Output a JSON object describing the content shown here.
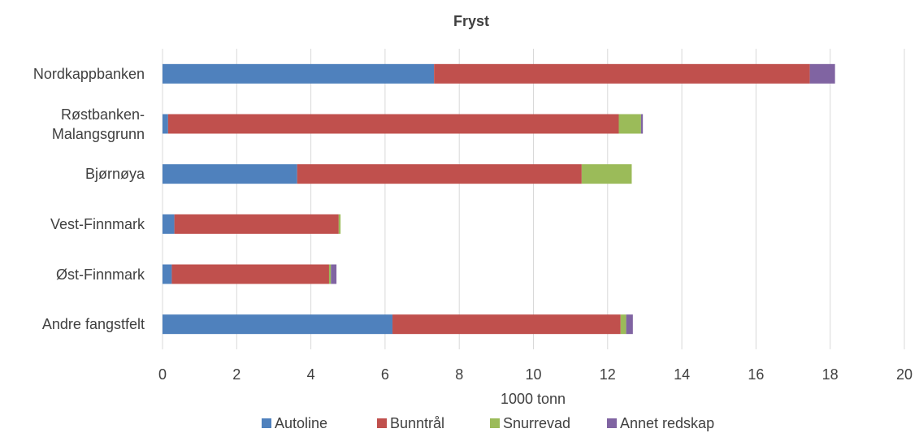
{
  "chart_data": {
    "type": "stacked_barh",
    "title": "Fryst",
    "x_label": "1000 tonn",
    "categories": [
      "Nordkappbanken",
      "Røstbanken-Malangsgrunn",
      "Bjørnøya",
      "Vest-Finnmark",
      "Øst-Finnmark",
      "Andre fangstfelt"
    ],
    "series": [
      {
        "name": "Autoline",
        "color": "#4f81bd",
        "values": [
          7.32,
          0.15,
          3.63,
          0.32,
          0.25,
          6.2
        ]
      },
      {
        "name": "Bunntrål",
        "color": "#c0504d",
        "values": [
          10.13,
          12.15,
          7.67,
          4.43,
          4.24,
          6.15
        ]
      },
      {
        "name": "Snurrevad",
        "color": "#9bbb59",
        "values": [
          0,
          0.6,
          1.35,
          0.05,
          0.05,
          0.15
        ]
      },
      {
        "name": "Annet redskap",
        "color": "#8064a2",
        "values": [
          0.68,
          0.05,
          0,
          0,
          0.15,
          0.18
        ]
      }
    ],
    "xlim": [
      0,
      20
    ],
    "xticks": [
      0,
      2,
      4,
      6,
      8,
      10,
      12,
      14,
      16,
      18,
      20
    ],
    "grid": true
  }
}
